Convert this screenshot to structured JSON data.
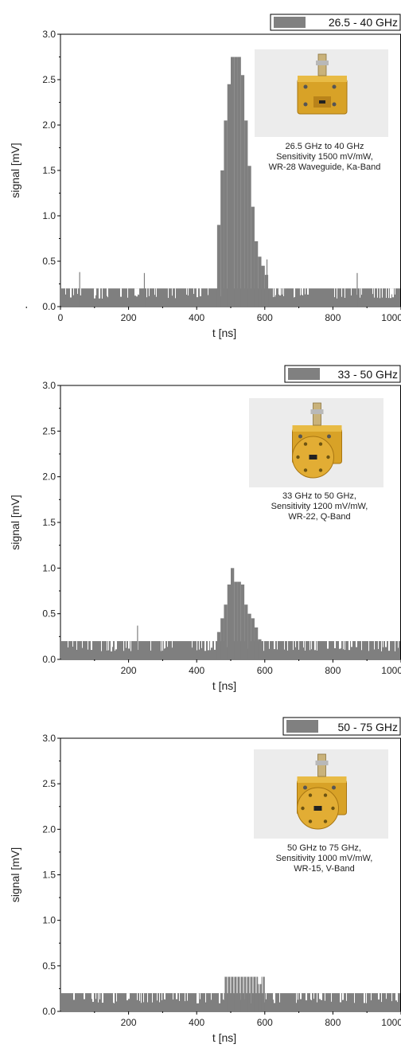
{
  "chart_data": [
    {
      "type": "bar",
      "xlabel": "t [ns]",
      "ylabel": "signal [mV]",
      "xlim": [
        0,
        1000
      ],
      "ylim": [
        0,
        3.0
      ],
      "x_ticks": [
        "0",
        "200",
        "400",
        "600",
        "800",
        "1000"
      ],
      "y_ticks": [
        "0.0",
        "0.5",
        "1.0",
        "1.5",
        "2.0",
        "2.5",
        "3.0"
      ],
      "legend": {
        "label": "26.5 - 40 GHz",
        "placement": "top-right",
        "color": "#808080"
      },
      "series_color": "#7f7f7f",
      "noise_level": 0.2,
      "spikes": [
        {
          "x": 55,
          "y": 0.38
        },
        {
          "x": 245,
          "y": 0.37
        },
        {
          "x": 605,
          "y": 0.52
        },
        {
          "x": 870,
          "y": 0.37
        }
      ],
      "pulse": {
        "x": [
          460,
          470,
          480,
          490,
          500,
          510,
          520,
          530,
          540,
          550,
          560,
          570,
          580,
          590,
          600
        ],
        "y": [
          0.9,
          1.5,
          2.05,
          2.45,
          2.75,
          2.75,
          2.75,
          2.55,
          2.05,
          1.55,
          1.1,
          0.72,
          0.55,
          0.45,
          0.35
        ]
      },
      "inset": {
        "lines": [
          "26.5 GHz to 40 GHz",
          "Sensitivity 1500 mV/mW,",
          "WR-28 Waveguide, Ka-Band"
        ],
        "image": "ka-band-waveguide-detector-photo"
      }
    },
    {
      "type": "bar",
      "xlabel": "t [ns]",
      "ylabel": "signal [mV]",
      "xlim": [
        0,
        1000
      ],
      "ylim": [
        0,
        3.0
      ],
      "x_ticks": [
        "200",
        "400",
        "600",
        "800",
        "1000"
      ],
      "y_ticks": [
        "0.0",
        "0.5",
        "1.0",
        "1.5",
        "2.0",
        "2.5",
        "3.0"
      ],
      "legend": {
        "label": "33 - 50 GHz",
        "placement": "top-right",
        "color": "#808080"
      },
      "series_color": "#7f7f7f",
      "noise_level": 0.2,
      "spikes": [
        {
          "x": 225,
          "y": 0.37
        }
      ],
      "pulse": {
        "x": [
          460,
          470,
          480,
          490,
          500,
          510,
          520,
          530,
          540,
          550,
          560,
          570,
          580
        ],
        "y": [
          0.3,
          0.45,
          0.6,
          0.82,
          1.0,
          0.85,
          0.85,
          0.82,
          0.6,
          0.5,
          0.45,
          0.35,
          0.22
        ]
      },
      "inset": {
        "lines": [
          "33 GHz to 50 GHz,",
          "Sensitivity 1200 mV/mW,",
          "WR-22, Q-Band"
        ],
        "image": "q-band-waveguide-detector-photo"
      }
    },
    {
      "type": "bar",
      "xlabel": "t [ns]",
      "ylabel": "signal [mV]",
      "xlim": [
        0,
        1000
      ],
      "ylim": [
        0,
        3.0
      ],
      "x_ticks": [
        "200",
        "400",
        "600",
        "800",
        "1000"
      ],
      "y_ticks": [
        "0.0",
        "0.5",
        "1.0",
        "1.5",
        "2.0",
        "2.5",
        "3.0"
      ],
      "legend": {
        "label": "50 - 75 GHz",
        "placement": "top-right",
        "color": "#808080"
      },
      "series_color": "#7f7f7f",
      "noise_level": 0.2,
      "spikes": [],
      "pulse": {
        "x": [
          480,
          490,
          500,
          510,
          520,
          530,
          540,
          550,
          560,
          570,
          580,
          590
        ],
        "y": [
          0.38,
          0.38,
          0.38,
          0.38,
          0.38,
          0.38,
          0.38,
          0.38,
          0.38,
          0.38,
          0.3,
          0.38
        ]
      },
      "inset": {
        "lines": [
          "50 GHz to 75 GHz,",
          "Sensitivity 1000 mV/mW,",
          "WR-15, V-Band"
        ],
        "image": "v-band-waveguide-detector-photo"
      }
    }
  ]
}
